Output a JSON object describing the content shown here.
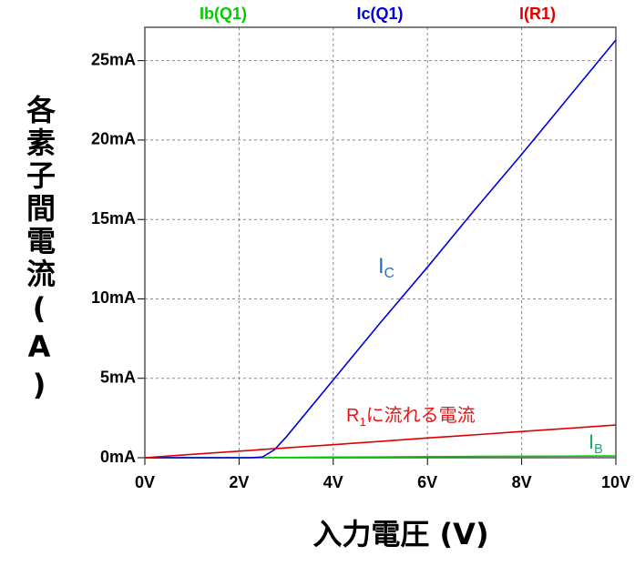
{
  "chart_data": {
    "type": "line",
    "legend": "top",
    "grid": true,
    "x_label": "入力電圧 (V)",
    "y_label": "各素子間電流(A)",
    "x": [
      0,
      1,
      2,
      2.25,
      2.5,
      2.75,
      3,
      4,
      5,
      6,
      7,
      8,
      9,
      10
    ],
    "series": [
      {
        "name": "Ib(Q1)",
        "color": "#00cc00",
        "values": [
          0,
          0,
          0,
          0,
          0,
          0.01,
          0.02,
          0.04,
          0.05,
          0.07,
          0.08,
          0.09,
          0.1,
          0.11
        ]
      },
      {
        "name": "Ic(Q1)",
        "color": "#0000dd",
        "values": [
          0,
          0,
          0,
          0,
          0.05,
          0.5,
          1.3,
          4.9,
          8.5,
          12.0,
          15.6,
          19.1,
          22.7,
          26.3
        ]
      },
      {
        "name": "I(R1)",
        "color": "#dd0000",
        "values": [
          0,
          0.21,
          0.41,
          0.46,
          0.52,
          0.57,
          0.62,
          0.82,
          1.03,
          1.24,
          1.44,
          1.65,
          1.85,
          2.06
        ]
      }
    ],
    "xlim": [
      0,
      10
    ],
    "ylim": [
      0,
      27.1
    ],
    "xticks": [
      {
        "value": 0,
        "label": "0V"
      },
      {
        "value": 2,
        "label": "2V"
      },
      {
        "value": 4,
        "label": "4V"
      },
      {
        "value": 6,
        "label": "6V"
      },
      {
        "value": 8,
        "label": "8V"
      },
      {
        "value": 10,
        "label": "10V"
      }
    ],
    "yticks": [
      {
        "value": 0,
        "label": "0mA"
      },
      {
        "value": 5,
        "label": "5mA"
      },
      {
        "value": 10,
        "label": "10mA"
      },
      {
        "value": 15,
        "label": "15mA"
      },
      {
        "value": 20,
        "label": "20mA"
      },
      {
        "value": 25,
        "label": "25mA"
      }
    ],
    "annotations": [
      {
        "text": "I",
        "sub": "C",
        "color": "#1a6fd4"
      },
      {
        "text": "R",
        "sub": "1",
        "after": "に流れる電流",
        "color": "#ee1111"
      },
      {
        "text": "I",
        "sub": "B",
        "color": "#1aaa6a"
      }
    ]
  }
}
